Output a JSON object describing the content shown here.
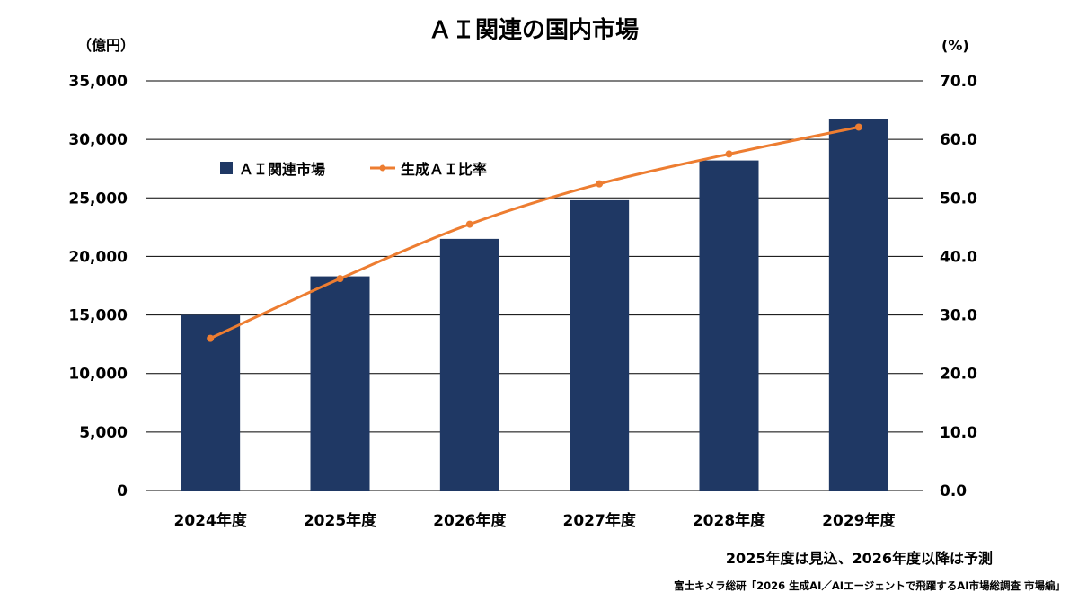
{
  "chart_data": {
    "type": "bar",
    "title": "ＡＩ関連の国内市場",
    "y_left_unit": "（億円）",
    "y_right_unit": "(%)",
    "categories": [
      "2024年度",
      "2025年度",
      "2026年度",
      "2027年度",
      "2028年度",
      "2029年度"
    ],
    "series": [
      {
        "name": "ＡＩ関連市場",
        "type": "bar",
        "axis": "left",
        "color": "#1f3864",
        "values": [
          15000,
          18300,
          21500,
          24800,
          28200,
          31700
        ]
      },
      {
        "name": "生成ＡＩ比率",
        "type": "line",
        "axis": "right",
        "color": "#ed7d31",
        "values": [
          26.0,
          36.2,
          45.5,
          52.4,
          57.5,
          62.1
        ]
      }
    ],
    "y_left": {
      "min": 0,
      "max": 35000,
      "step": 5000,
      "tick_labels": [
        "0",
        "5,000",
        "10,000",
        "15,000",
        "20,000",
        "25,000",
        "30,000",
        "35,000"
      ]
    },
    "y_right": {
      "min": 0,
      "max": 70,
      "step": 10,
      "tick_labels": [
        "0.0",
        "10.0",
        "20.0",
        "30.0",
        "40.0",
        "50.0",
        "60.0",
        "70.0"
      ]
    },
    "grid": true,
    "legend_position": "top-left"
  },
  "notes": {
    "forecast": "2025年度は見込、2026年度以降は予測",
    "source": "富士キメラ総研「2026 生成AI／AIエージェントで飛躍するAI市場総調査 市場編」"
  }
}
